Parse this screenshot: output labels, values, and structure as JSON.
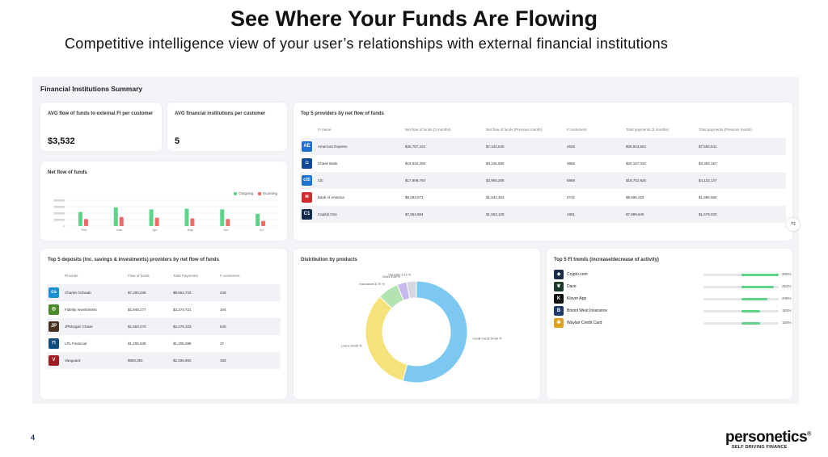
{
  "slide": {
    "title": "See Where Your Funds Are Flowing",
    "subtitle": "Competitive intelligence view of your user’s relationships with external financial institutions",
    "page_number": "4",
    "brand": "personetics",
    "brand_mark": "®",
    "tagline": "SELF DRIVING FINANCE"
  },
  "dashboard": {
    "title": "Financial Institutions Summary",
    "kpi_avg_flow": {
      "label": "AVG flow of funds to external FI per customer",
      "value": "$3,532"
    },
    "kpi_avg_fi": {
      "label": "AVG financial institutions per customer",
      "value": "5"
    },
    "net_flow": {
      "title": "Net flow of funds",
      "legend": [
        "Outgoing",
        "Incoming"
      ]
    },
    "top5_providers": {
      "title": "Top 5 providers by net flow of funds",
      "headers": [
        "FI name",
        "Net flow of funds (3 months)",
        "Net flow of funds (Previous month)",
        "# customers",
        "Total payments (3 months)",
        "Total payments (Previous month)"
      ],
      "rows": [
        {
          "name": "American Express",
          "c1": "$35,757,222",
          "c2": "$7,442,545",
          "c3": "2628",
          "c4": "$36,944,652",
          "c5": "$7,550,541",
          "logo": "amex-logo",
          "color": "#1f6fcf",
          "glyph": "AE"
        },
        {
          "name": "Chase Bank",
          "c1": "$19,834,259",
          "c2": "$4,245,559",
          "c3": "3665",
          "c4": "$20,167,022",
          "c5": "$4,363,157",
          "logo": "chase-logo",
          "color": "#124a9b",
          "glyph": "◘"
        },
        {
          "name": "Citi",
          "c1": "$17,908,760",
          "c2": "$3,965,308",
          "c3": "5859",
          "c4": "$18,752,925",
          "c5": "$4,122,147",
          "logo": "citi-logo",
          "color": "#1a73c9",
          "glyph": "citi"
        },
        {
          "name": "Bank of America",
          "c1": "$8,283,671",
          "c2": "$1,942,303",
          "c3": "2742",
          "c4": "$8,696,418",
          "c5": "$1,995,560",
          "logo": "boa-logo",
          "color": "#d22a2f",
          "glyph": "≋"
        },
        {
          "name": "Capital One",
          "c1": "$7,654,864",
          "c2": "$1,563,128",
          "c3": "1991",
          "c4": "$7,999,645",
          "c5": "$1,679,020",
          "logo": "capital-one-logo",
          "color": "#0f2a4a",
          "glyph": "C1"
        }
      ]
    },
    "top5_deposits": {
      "title": "Top 5 deposits (inc. savings & investments) providers by net flow of funds",
      "headers": [
        "Provider",
        "Flow of funds",
        "Total Payments",
        "# customers"
      ],
      "rows": [
        {
          "name": "Charles Schwab",
          "c1": "$7,290,039",
          "c2": "$9,664,715",
          "c3": "249",
          "logo": "schwab-logo",
          "color": "#1a8fd6",
          "glyph": "cs"
        },
        {
          "name": "Fidelity Investments",
          "c1": "$1,945,177",
          "c2": "$3,274,721",
          "c3": "104",
          "logo": "fidelity-logo",
          "color": "#4a8a2a",
          "glyph": "◎"
        },
        {
          "name": "JPMorgan Chase",
          "c1": "$1,593,470",
          "c2": "$2,279,103",
          "c3": "540",
          "logo": "jpmorgan-logo",
          "color": "#4a3020",
          "glyph": "JP"
        },
        {
          "name": "LPL Financial",
          "c1": "$1,205,538",
          "c2": "$1,206,088",
          "c3": "37",
          "logo": "lpl-logo",
          "color": "#0e4a7a",
          "glyph": "⊓"
        },
        {
          "name": "Vanguard",
          "c1": "$960,091",
          "c2": "$2,206,892",
          "c3": "165",
          "logo": "vanguard-logo",
          "color": "#a01c22",
          "glyph": "V"
        }
      ]
    },
    "distribution": {
      "title": "Distribution by products",
      "slices": [
        {
          "label": "Credit Cards 54.80 %",
          "value": 54.8,
          "color": "#7cc8f0"
        },
        {
          "label": "Loans 33.08 %",
          "value": 33.08,
          "color": "#f5e27a"
        },
        {
          "label": "Insurances 6.70 %",
          "value": 6.7,
          "color": "#b3e3b0"
        },
        {
          "label": "Other 3.08 %",
          "value": 3.08,
          "color": "#c7b8ee"
        },
        {
          "label": "Deposits 3.12 %",
          "value": 3.12,
          "color": "#d5d8de"
        }
      ]
    },
    "fi_trends": {
      "title": "Top 5 FI trends (increase/decrease of activity)",
      "rows": [
        {
          "name": "Crypto.com",
          "value": "300%",
          "pct": 1.0,
          "logo": "crypto-logo",
          "color": "#1a2a4a",
          "glyph": "◈"
        },
        {
          "name": "Dave",
          "value": "262%",
          "pct": 0.87,
          "logo": "dave-logo",
          "color": "#1c3a2a",
          "glyph": "❦"
        },
        {
          "name": "Klover App",
          "value": "209%",
          "pct": 0.7,
          "logo": "klover-logo",
          "color": "#111111",
          "glyph": "K"
        },
        {
          "name": "Bristol West Insurance",
          "value": "153%",
          "pct": 0.51,
          "logo": "bristol-logo",
          "color": "#1e3a6a",
          "glyph": "B"
        },
        {
          "name": "Waylair Credit Card",
          "value": "150%",
          "pct": 0.5,
          "logo": "waylair-logo",
          "color": "#e0a020",
          "glyph": "✱"
        }
      ]
    }
  },
  "chart_data": {
    "type": "bar",
    "categories": [
      "Feb",
      "Mar",
      "Apr",
      "May",
      "Jun",
      "Jul"
    ],
    "ylim": [
      0,
      4
    ],
    "yticks": [
      "4000000",
      "3000000",
      "2000000",
      "1000000",
      "0"
    ],
    "series": [
      {
        "name": "Outgoing",
        "color": "#5fd38a",
        "values": [
          2.2,
          2.9,
          2.6,
          2.7,
          2.6,
          1.9
        ]
      },
      {
        "name": "Incoming",
        "color": "#ef6b6b",
        "values": [
          1.1,
          1.4,
          1.3,
          1.2,
          1.1,
          0.8
        ]
      }
    ]
  }
}
